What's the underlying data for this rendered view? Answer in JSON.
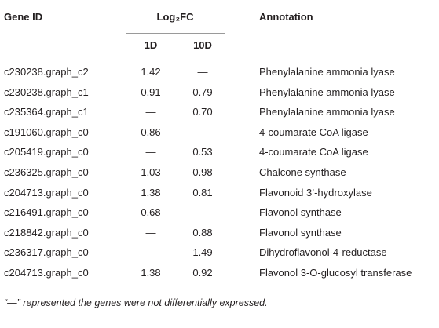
{
  "table": {
    "headers": {
      "gene_id": "Gene ID",
      "log2fc": "Log₂FC",
      "annotation": "Annotation",
      "sub": [
        "1D",
        "10D"
      ]
    },
    "rows": [
      [
        "c230238.graph_c2",
        "1.42",
        "—",
        "Phenylalanine ammonia lyase"
      ],
      [
        "c230238.graph_c1",
        "0.91",
        "0.79",
        "Phenylalanine ammonia lyase"
      ],
      [
        "c235364.graph_c1",
        "—",
        "0.70",
        "Phenylalanine ammonia lyase"
      ],
      [
        "c191060.graph_c0",
        "0.86",
        "—",
        "4-coumarate CoA ligase"
      ],
      [
        "c205419.graph_c0",
        "—",
        "0.53",
        "4-coumarate CoA ligase"
      ],
      [
        "c236325.graph_c0",
        "1.03",
        "0.98",
        "Chalcone synthase"
      ],
      [
        "c204713.graph_c0",
        "1.38",
        "0.81",
        "Flavonoid 3’-hydroxylase"
      ],
      [
        "c216491.graph_c0",
        "0.68",
        "—",
        "Flavonol synthase"
      ],
      [
        "c218842.graph_c0",
        "—",
        "0.88",
        "Flavonol synthase"
      ],
      [
        "c236317.graph_c0",
        "—",
        "1.49",
        "Dihydroflavonol-4-reductase"
      ],
      [
        "c204713.graph_c0",
        "1.38",
        "0.92",
        "Flavonol 3-O-glucosyl transferase"
      ]
    ]
  },
  "footnote": "“—” represented the genes were not differentially expressed."
}
